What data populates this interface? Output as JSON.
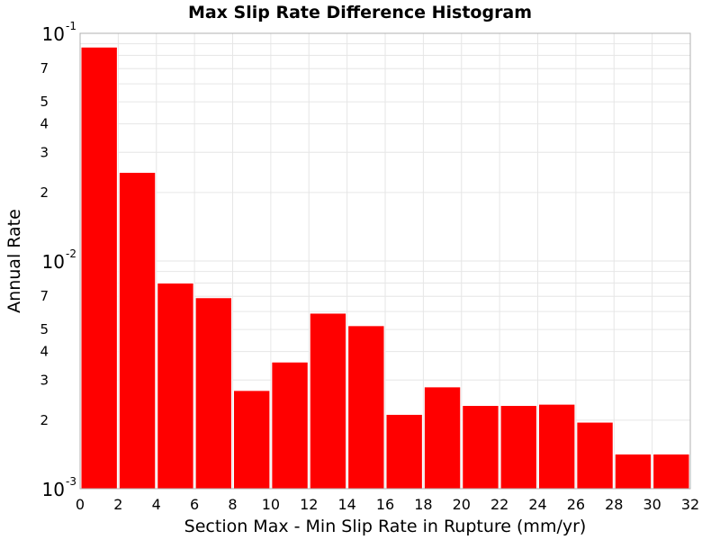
{
  "chart_data": {
    "type": "bar",
    "title": "Max Slip Rate Difference Histogram",
    "xlabel": "Section Max - Min Slip Rate in Rupture (mm/yr)",
    "ylabel": "Annual Rate",
    "bar_color": "#ff0000",
    "xlim": [
      0,
      32
    ],
    "ylim": [
      0.001,
      0.1
    ],
    "yscale": "log",
    "grid": true,
    "bin_width": 2,
    "x": [
      1,
      3,
      5,
      7,
      9,
      11,
      13,
      15,
      17,
      19,
      21,
      23,
      25,
      27,
      29,
      31
    ],
    "values": [
      0.087,
      0.0245,
      0.008,
      0.0069,
      0.0027,
      0.0036,
      0.0059,
      0.0052,
      0.00212,
      0.0028,
      0.00232,
      0.00232,
      0.00235,
      0.00196,
      0.00142,
      0.00142
    ],
    "x_ticks": [
      "0",
      "2",
      "4",
      "6",
      "8",
      "10",
      "12",
      "14",
      "16",
      "18",
      "20",
      "22",
      "24",
      "26",
      "28",
      "30",
      "32"
    ],
    "y_major_ticks": [
      {
        "value": 0.1,
        "base": "10",
        "exp": "-1"
      },
      {
        "value": 0.01,
        "base": "10",
        "exp": "-2"
      },
      {
        "value": 0.001,
        "base": "10",
        "exp": "-3"
      }
    ],
    "y_minor_ticks": [
      {
        "value": 0.07,
        "label": "7"
      },
      {
        "value": 0.05,
        "label": "5"
      },
      {
        "value": 0.04,
        "label": "4"
      },
      {
        "value": 0.03,
        "label": "3"
      },
      {
        "value": 0.02,
        "label": "2"
      },
      {
        "value": 0.007,
        "label": "7"
      },
      {
        "value": 0.005,
        "label": "5"
      },
      {
        "value": 0.004,
        "label": "4"
      },
      {
        "value": 0.003,
        "label": "3"
      },
      {
        "value": 0.002,
        "label": "2"
      }
    ]
  }
}
